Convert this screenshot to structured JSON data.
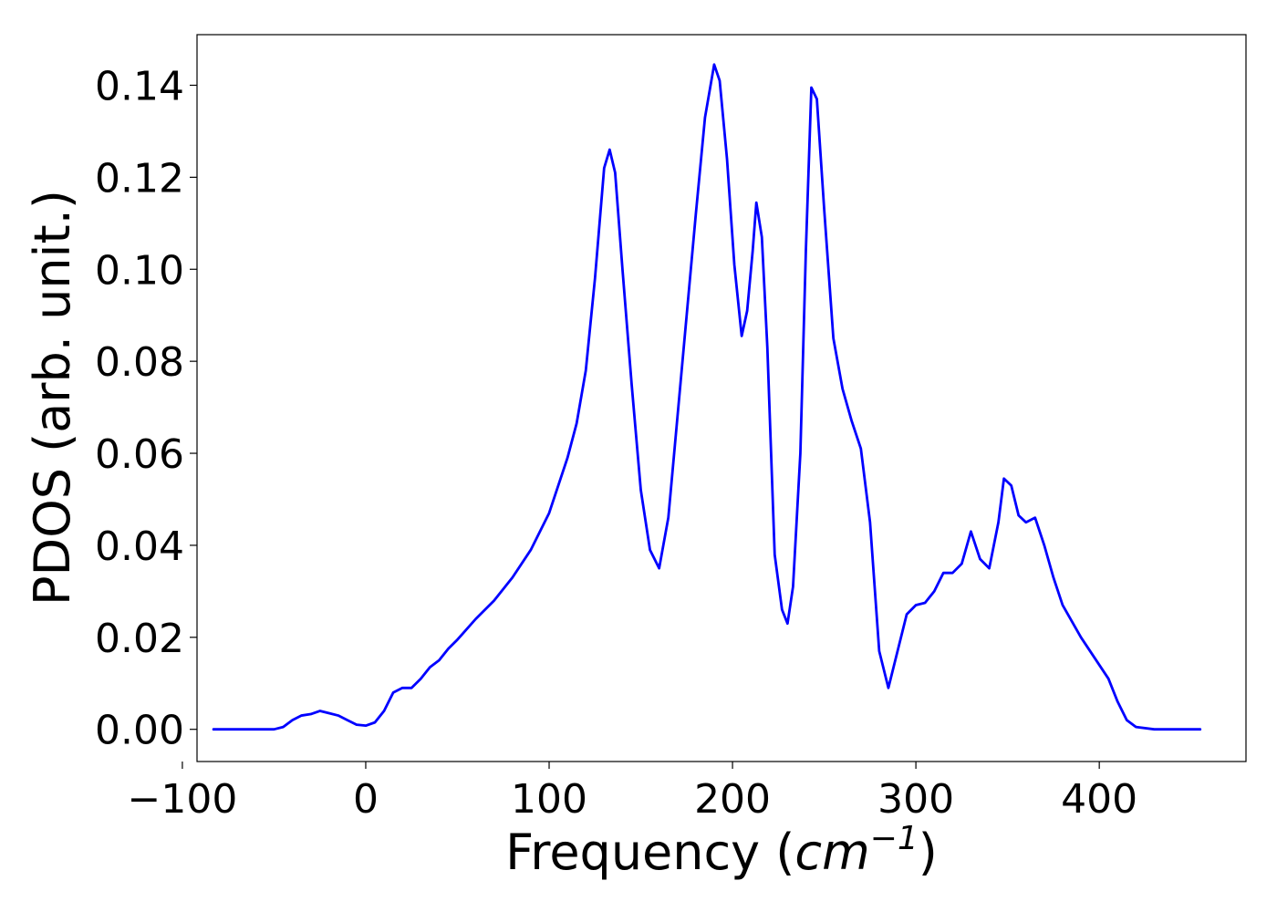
{
  "chart_data": {
    "type": "line",
    "title": "",
    "xlabel": "Frequency",
    "xlabel_unit_base": "cm",
    "xlabel_unit_exp": "−1",
    "ylabel": "PDOS (arb. unit.)",
    "xlim": [
      -92,
      480
    ],
    "ylim": [
      -0.007,
      0.151
    ],
    "grid": false,
    "legend": "none",
    "line_color": "#0000ff",
    "x_ticks": [
      {
        "value": -100,
        "label": "−100"
      },
      {
        "value": 0,
        "label": "0"
      },
      {
        "value": 100,
        "label": "100"
      },
      {
        "value": 200,
        "label": "200"
      },
      {
        "value": 300,
        "label": "300"
      },
      {
        "value": 400,
        "label": "400"
      }
    ],
    "y_ticks": [
      {
        "value": 0.0,
        "label": "0.00"
      },
      {
        "value": 0.02,
        "label": "0.02"
      },
      {
        "value": 0.04,
        "label": "0.04"
      },
      {
        "value": 0.06,
        "label": "0.06"
      },
      {
        "value": 0.08,
        "label": "0.08"
      },
      {
        "value": 0.1,
        "label": "0.10"
      },
      {
        "value": 0.12,
        "label": "0.12"
      },
      {
        "value": 0.14,
        "label": "0.14"
      }
    ],
    "series": [
      {
        "x": [
          -83,
          -60,
          -50,
          -45,
          -40,
          -35,
          -30,
          -25,
          -20,
          -15,
          -10,
          -5,
          0,
          5,
          10,
          15,
          20,
          25,
          30,
          35,
          40,
          45,
          50,
          60,
          70,
          80,
          90,
          100,
          110,
          115,
          120,
          125,
          130,
          133,
          136,
          140,
          145,
          150,
          155,
          160,
          165,
          170,
          175,
          180,
          185,
          190,
          193,
          197,
          201,
          205,
          208,
          211,
          213,
          216,
          219,
          223,
          227,
          230,
          233,
          237,
          240,
          243,
          246,
          250,
          255,
          260,
          265,
          270,
          275,
          280,
          285,
          290,
          295,
          300,
          305,
          310,
          315,
          320,
          325,
          330,
          335,
          340,
          345,
          348,
          352,
          356,
          360,
          365,
          370,
          375,
          380,
          390,
          400,
          405,
          410,
          415,
          420,
          430,
          455
        ],
        "y": [
          0.0,
          0.0,
          0.0,
          0.0005,
          0.002,
          0.003,
          0.0033,
          0.004,
          0.0035,
          0.003,
          0.002,
          0.001,
          0.0008,
          0.0015,
          0.004,
          0.008,
          0.009,
          0.009,
          0.011,
          0.0135,
          0.015,
          0.0175,
          0.0195,
          0.024,
          0.028,
          0.033,
          0.039,
          0.047,
          0.059,
          0.0665,
          0.078,
          0.098,
          0.122,
          0.126,
          0.121,
          0.1,
          0.075,
          0.052,
          0.039,
          0.035,
          0.046,
          0.068,
          0.09,
          0.112,
          0.133,
          0.1445,
          0.141,
          0.124,
          0.101,
          0.0855,
          0.091,
          0.104,
          0.1145,
          0.107,
          0.083,
          0.038,
          0.026,
          0.023,
          0.031,
          0.06,
          0.104,
          0.1395,
          0.137,
          0.113,
          0.085,
          0.074,
          0.067,
          0.061,
          0.045,
          0.017,
          0.009,
          0.017,
          0.025,
          0.027,
          0.0275,
          0.03,
          0.034,
          0.034,
          0.036,
          0.043,
          0.037,
          0.035,
          0.045,
          0.0545,
          0.053,
          0.0465,
          0.045,
          0.046,
          0.04,
          0.033,
          0.027,
          0.02,
          0.014,
          0.011,
          0.006,
          0.002,
          0.0005,
          0.0,
          0.0
        ]
      }
    ]
  }
}
